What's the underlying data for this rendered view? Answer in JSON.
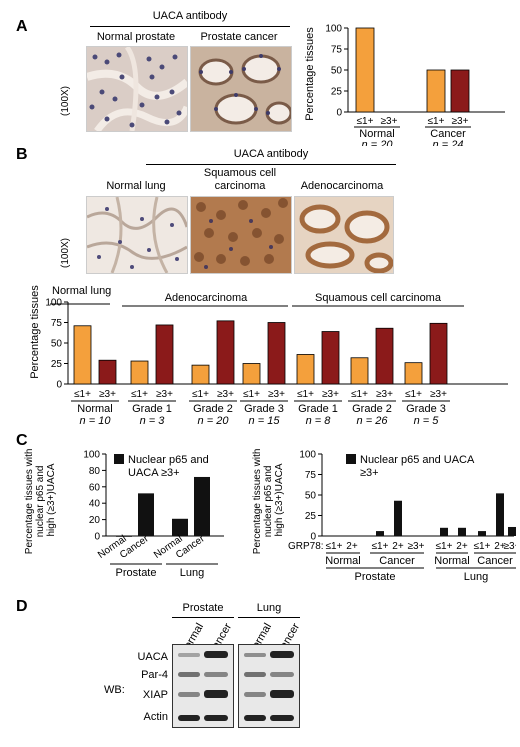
{
  "panel_labels": [
    "A",
    "B",
    "C",
    "D"
  ],
  "colors": {
    "low": "#F4A03C",
    "high": "#8B1A1A",
    "black": "#111111"
  },
  "panel_a": {
    "header": "UACA antibody",
    "image_labels": [
      "Normal prostate",
      "Prostate cancer"
    ],
    "magnification": "(100X)"
  },
  "panel_b": {
    "header": "UACA antibody",
    "image_labels": [
      "Normal lung",
      "Squamous cell carcinoma",
      "Adenocarcinoma"
    ],
    "magnification": "(100X)"
  },
  "panel_d": {
    "group_labels": [
      "Prostate",
      "Lung"
    ],
    "lane_labels": [
      "Normal",
      "Cancer",
      "Normal",
      "Cancer"
    ],
    "row_labels": [
      "UACA",
      "Par-4",
      "XIAP",
      "Actin"
    ],
    "wb_label": "WB:"
  },
  "chart_data": [
    {
      "id": "A",
      "type": "bar",
      "ylabel": "Percentage tissues",
      "ylim": [
        0,
        100
      ],
      "yticks": [
        0,
        25,
        50,
        75,
        100
      ],
      "tick_labels": [
        "≤1+",
        "≥3+",
        "≤1+",
        "≥3+"
      ],
      "groups": [
        {
          "label": "Normal",
          "n": "n = 20",
          "values": [
            100,
            0
          ]
        },
        {
          "label": "Cancer",
          "n": "n = 24",
          "values": [
            50,
            50
          ]
        }
      ]
    },
    {
      "id": "B",
      "type": "bar",
      "ylabel": "Percentage tissues",
      "ylim": [
        0,
        100
      ],
      "yticks": [
        0,
        25,
        50,
        75,
        100
      ],
      "section_labels": [
        "Normal lung",
        "Adenocarcinoma",
        "Squamous cell carcinoma"
      ],
      "tick_labels": [
        "≤1+",
        "≥3+"
      ],
      "groups": [
        {
          "label": "Normal",
          "n": "n = 10",
          "values": [
            71,
            29
          ]
        },
        {
          "label": "Grade 1",
          "n": "n = 3",
          "values": [
            28,
            72
          ]
        },
        {
          "label": "Grade 2",
          "n": "n = 20",
          "values": [
            23,
            77
          ]
        },
        {
          "label": "Grade 3",
          "n": "n = 15",
          "values": [
            25,
            75
          ]
        },
        {
          "label": "Grade 1",
          "n": "n = 8",
          "values": [
            36,
            64
          ]
        },
        {
          "label": "Grade 2",
          "n": "n = 26",
          "values": [
            32,
            68
          ]
        },
        {
          "label": "Grade 3",
          "n": "n = 5",
          "values": [
            26,
            74
          ]
        }
      ]
    },
    {
      "id": "C-left",
      "type": "bar",
      "ylabel": "Percentage tissues with nuclear p65 and high (≥3+)UACA",
      "legend": "Nuclear p65 and UACA ≥3+",
      "ylim": [
        0,
        100
      ],
      "yticks": [
        0,
        20,
        40,
        60,
        80,
        100
      ],
      "categories": [
        "Normal",
        "Cancer",
        "Normal",
        "Cancer"
      ],
      "values": [
        0,
        52,
        21,
        72
      ],
      "group_labels": [
        "Prostate",
        "Lung"
      ]
    },
    {
      "id": "C-right",
      "type": "bar",
      "ylabel": "Percentage tissues with nuclear p65 and high (≥3+)UACA",
      "legend": "Nuclear p65 and UACA ≥3+",
      "ylim": [
        0,
        100
      ],
      "yticks": [
        0,
        25,
        50,
        75,
        100
      ],
      "row_label": "GRP78:",
      "categories": [
        "≤1+",
        "2+",
        "≤1+",
        "2+",
        "≥3+",
        "≤1+",
        "2+",
        "≤1+",
        "2+",
        "≥3+"
      ],
      "values": [
        0,
        0,
        6,
        43,
        0,
        10,
        10,
        6,
        52,
        11
      ],
      "subgroup_labels": [
        "Normal",
        "Cancer",
        "Normal",
        "Cancer"
      ],
      "group_labels": [
        "Prostate",
        "Lung"
      ]
    }
  ]
}
